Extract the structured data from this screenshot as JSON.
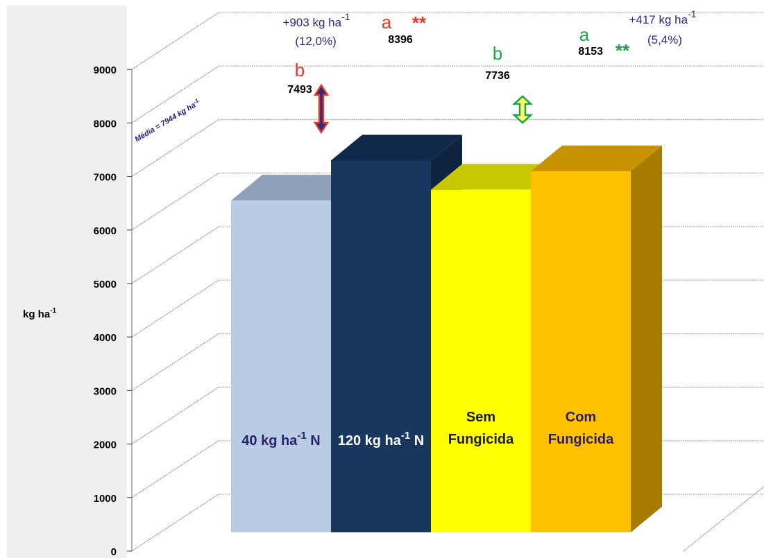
{
  "chart_data": {
    "type": "bar",
    "ylabel": "kg ha",
    "ylabel_sup": "-1",
    "ylim": [
      0,
      9000
    ],
    "yticks": [
      "0",
      "1000",
      "2000",
      "3000",
      "4000",
      "5000",
      "6000",
      "7000",
      "8000",
      "9000"
    ],
    "grid": true,
    "categories": [
      {
        "label_pre": "40 kg ha",
        "label_sup": "-1",
        "label_post": " N",
        "label_color": "#2a1f6e"
      },
      {
        "label_pre": "120 kg ha",
        "label_sup": "-1",
        "label_post": " N",
        "label_color": "#ffffff"
      },
      {
        "label_pre": "Sem",
        "label_line2": "Fungicida",
        "label_color": "#1a1a3a"
      },
      {
        "label_pre": "Com",
        "label_line2": "Fungicida",
        "label_color": "#2a1f6e"
      }
    ],
    "values": [
      7493,
      8396,
      7736,
      8153
    ],
    "value_labels": [
      "7493",
      "8396",
      "7736",
      "8153"
    ],
    "letters": [
      "b",
      "a",
      "b",
      "a"
    ],
    "stars": [
      "",
      "**",
      "",
      "**"
    ],
    "colors": {
      "front": [
        "#b8cce4",
        "#17375e",
        "#ffff00",
        "#ffc000"
      ],
      "top": [
        "#8ea0b8",
        "#10294a",
        "#c8c800",
        "#c89200"
      ],
      "side": [
        "#9fb0c8",
        "#0e2440",
        "#d6d600",
        "#a67c00"
      ],
      "nitrogen_accent": "#e03a2a",
      "fungicide_accent": "#1aa34a",
      "annotation": "#2a2a82"
    },
    "annotations": {
      "nitrogen_gain_pre": "+903 kg ha",
      "nitrogen_gain_sup": "-1",
      "nitrogen_gain_pct": "(12,0%)",
      "fungicide_gain_pre": "+417 kg ha",
      "fungicide_gain_sup": "-1",
      "fungicide_gain_pct": "(5,4%)",
      "mean_label_pre": "Média = 7944 kg ha",
      "mean_label_sup": "-1"
    }
  }
}
